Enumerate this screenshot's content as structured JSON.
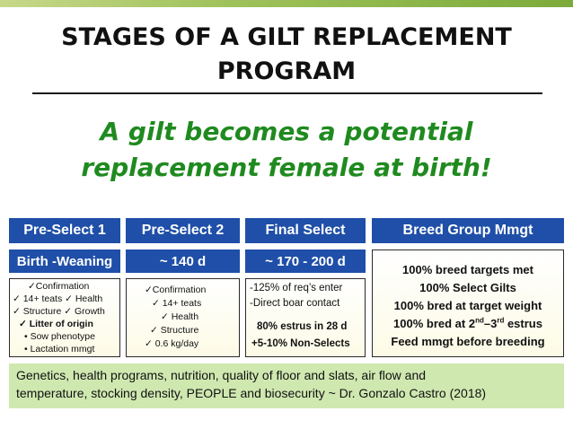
{
  "title": {
    "line1": "STAGES OF A GILT REPLACEMENT",
    "line2": "PROGRAM"
  },
  "subtitle": {
    "line1": "A gilt becomes a potential",
    "line2": "replacement female at birth!"
  },
  "columns": [
    {
      "header": "Pre-Select 1",
      "timing": "Birth -Weaning"
    },
    {
      "header": "Pre-Select 2",
      "timing": "~ 140 d"
    },
    {
      "header": "Final Select",
      "timing": "~ 170 - 200 d"
    },
    {
      "header": "Breed Group Mmgt"
    }
  ],
  "col1": {
    "l1": "✓Confirmation",
    "l2": "✓ 14+ teats  ✓ Health",
    "l3": "✓ Structure  ✓ Growth",
    "l4": "✓ Litter of origin",
    "l5": "• Sow phenotype",
    "l6": "• Lactation mmgt"
  },
  "col2": {
    "l1": "✓Confirmation",
    "l2": "✓  14+ teats",
    "l3": "✓  Health",
    "l4": "✓  Structure",
    "l5": "✓    0.6 kg/day"
  },
  "col3": {
    "l1": "-125% of req’s enter",
    "l2": "-Direct boar contact",
    "l3": "80% estrus in 28 d",
    "l4": "+5-10%  Non-Selects"
  },
  "col4": {
    "l1": "100% breed targets met",
    "l2": "100% Select Gilts",
    "l3": "100% bred at target weight",
    "l4a": "100% bred at 2",
    "l4b": "nd",
    "l4c": "–3",
    "l4d": "rd",
    "l4e": " estrus",
    "l5": "Feed mmgt before breeding"
  },
  "footer": {
    "l1": "Genetics, health programs, nutrition, quality of floor and slats, air flow and",
    "l2": "temperature, stocking density, PEOPLE and biosecurity ~ Dr. Gonzalo Castro (2018)"
  },
  "colors": {
    "header_blue": "#1f4fa8",
    "subtitle_green": "#1f8a1f",
    "footer_green": "#cfe8b0"
  }
}
